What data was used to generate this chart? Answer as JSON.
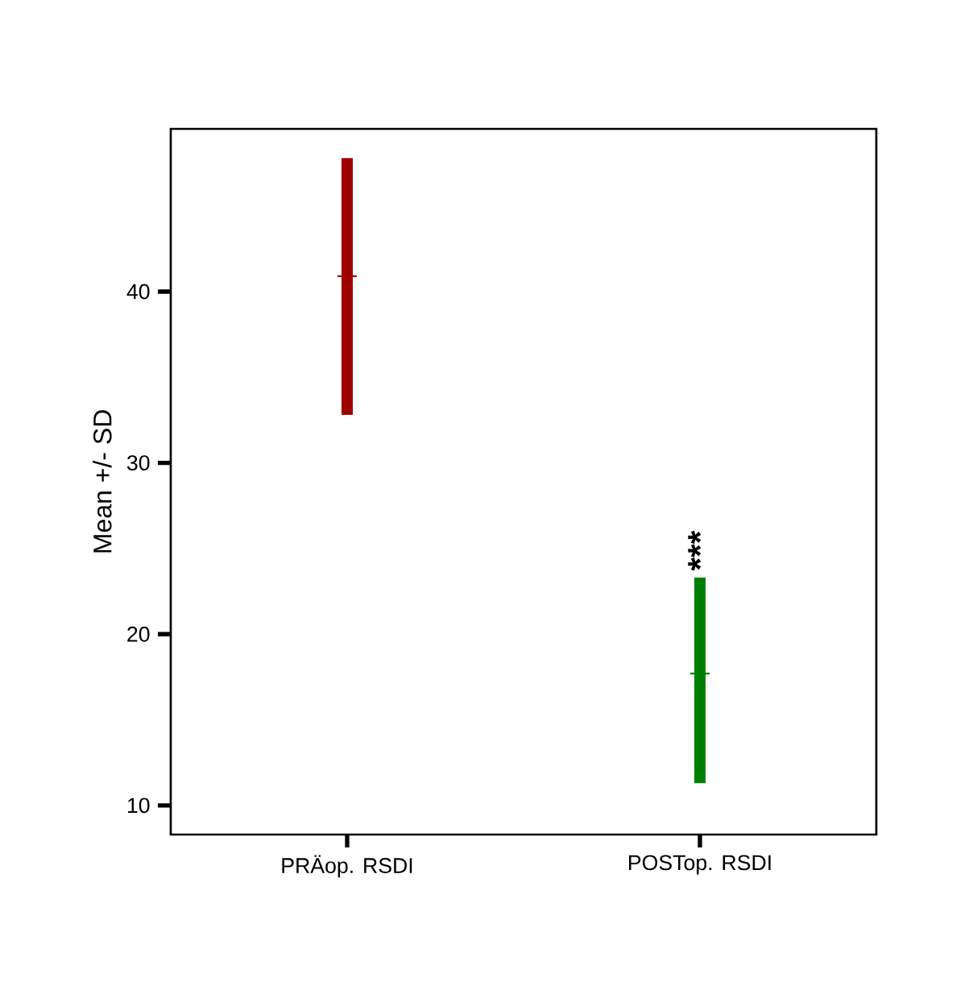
{
  "chart_data": {
    "type": "bar",
    "categories": [
      "PRÄop. RSDI",
      "POSTop. RSDI"
    ],
    "ylabel": "Mean +/- SD",
    "ylim": [
      8.3,
      49.5
    ],
    "yticks": [
      10,
      20,
      30,
      40
    ],
    "series": [
      {
        "colors": [
          "#a00000",
          "#008000"
        ],
        "base": [
          32.8,
          11.3
        ],
        "values": [
          15.0,
          12.0
        ]
      },
      {
        "type": "scatter",
        "marker": "cross",
        "colors": [
          "#a00000",
          "#008000"
        ],
        "values": [
          40.9,
          17.7
        ]
      }
    ],
    "annotations": [
      "***"
    ]
  }
}
